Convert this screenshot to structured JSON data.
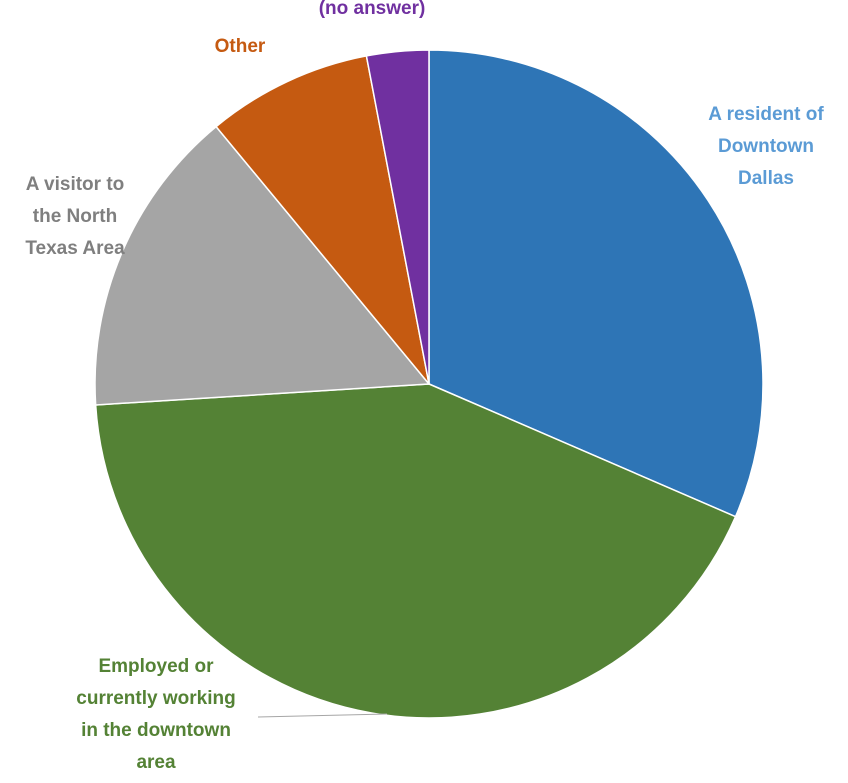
{
  "chart_data": {
    "type": "pie",
    "start": "12 o'clock",
    "direction": "clockwise",
    "legend": "none",
    "slices": [
      {
        "label": "A resident of Downtown Dallas",
        "label_lines": [
          "A resident of",
          "Downtown",
          "Dallas"
        ],
        "value": 31.5,
        "color": "#2e75b6",
        "label_color": "#5b9bd5"
      },
      {
        "label": "Employed or currently working in the downtown area",
        "label_lines": [
          "Employed or",
          "currently working",
          "in the downtown",
          "area"
        ],
        "value": 42.5,
        "color": "#548235",
        "label_color": "#548235"
      },
      {
        "label": "A visitor to the North Texas Area",
        "label_lines": [
          "A visitor to",
          "the North",
          "Texas Area"
        ],
        "value": 15.0,
        "color": "#a5a5a5",
        "label_color": "#7f7f7f"
      },
      {
        "label": "Other",
        "label_lines": [
          "Other"
        ],
        "value": 8.0,
        "color": "#c55a11",
        "label_color": "#c55a11"
      },
      {
        "label": "(no answer)",
        "label_lines": [
          "(no answer)"
        ],
        "value": 3.0,
        "color": "#7030a0",
        "label_color": "#7030a0"
      }
    ]
  }
}
